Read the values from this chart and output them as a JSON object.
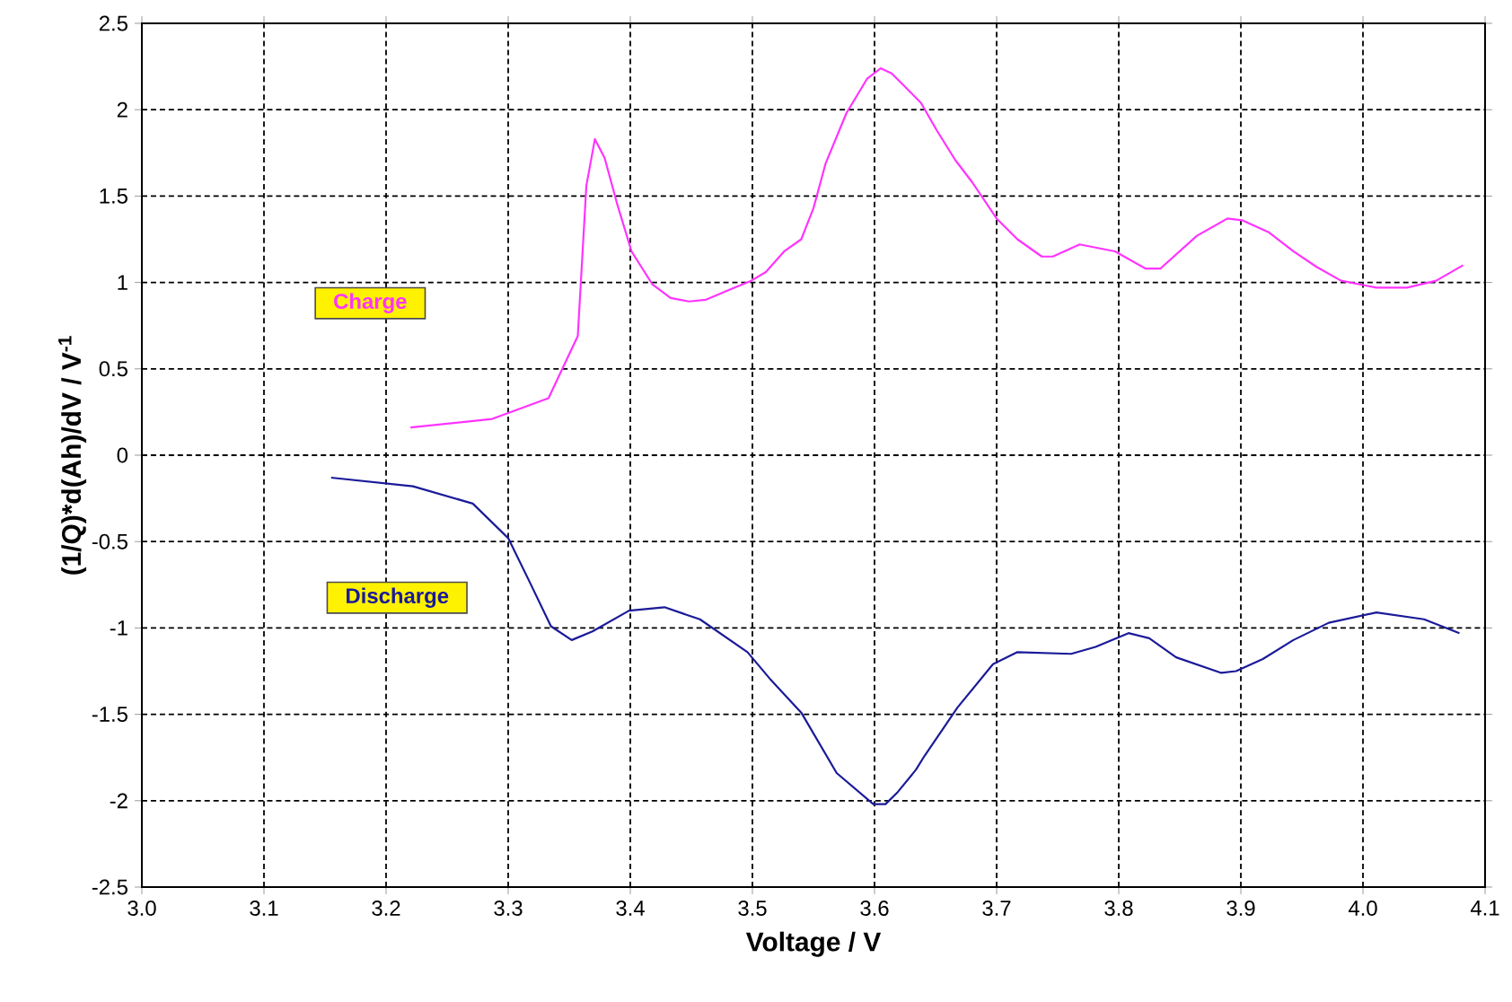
{
  "chart_data": {
    "type": "line",
    "xlabel": "Voltage / V",
    "ylabel": "(1/Q)*d(Ah)/dV  / V$^{-1}$",
    "xlim": [
      3.0,
      4.1
    ],
    "ylim": [
      -2.5,
      2.5
    ],
    "xticks": [
      {
        "value": 3.0,
        "label": "3.0"
      },
      3.1,
      3.2,
      3.3,
      3.4,
      3.5,
      3.6,
      3.7,
      3.8,
      3.9,
      {
        "value": 4.0,
        "label": "4.0"
      },
      4.1
    ],
    "yticks": [
      -2.5,
      -2,
      -1.5,
      -1,
      -0.5,
      0,
      0.5,
      1,
      1.5,
      2,
      2.5
    ],
    "grid": true,
    "legend": false,
    "marker": "none",
    "line_style": "solid",
    "series": [
      {
        "name": "Charge",
        "color": "#ff33ff",
        "x": [
          3.22,
          3.287,
          3.333,
          3.357,
          3.364,
          3.371,
          3.379,
          3.389,
          3.401,
          3.418,
          3.433,
          3.448,
          3.462,
          3.482,
          3.499,
          3.511,
          3.526,
          3.54,
          3.55,
          3.56,
          3.577,
          3.594,
          3.605,
          3.614,
          3.624,
          3.638,
          3.651,
          3.666,
          3.68,
          3.7,
          3.717,
          3.737,
          3.746,
          3.768,
          3.797,
          3.822,
          3.834,
          3.864,
          3.889,
          3.901,
          3.923,
          3.943,
          3.962,
          3.982,
          4.011,
          4.036,
          4.06,
          4.082
        ],
        "values": [
          0.16,
          0.21,
          0.33,
          0.69,
          1.56,
          1.83,
          1.72,
          1.46,
          1.18,
          0.99,
          0.91,
          0.89,
          0.9,
          0.96,
          1.01,
          1.06,
          1.18,
          1.25,
          1.43,
          1.69,
          1.98,
          2.18,
          2.24,
          2.21,
          2.14,
          2.04,
          1.88,
          1.71,
          1.58,
          1.37,
          1.25,
          1.15,
          1.15,
          1.22,
          1.18,
          1.08,
          1.08,
          1.27,
          1.37,
          1.36,
          1.29,
          1.18,
          1.09,
          1.01,
          0.97,
          0.97,
          1.01,
          1.1
        ]
      },
      {
        "name": "Discharge",
        "color": "#1a1a99",
        "x": [
          3.155,
          3.222,
          3.271,
          3.3,
          3.318,
          3.335,
          3.352,
          3.369,
          3.399,
          3.428,
          3.457,
          3.496,
          3.515,
          3.54,
          3.569,
          3.599,
          3.609,
          3.619,
          3.634,
          3.641,
          3.668,
          3.697,
          3.717,
          3.761,
          3.781,
          3.808,
          3.825,
          3.847,
          3.884,
          3.896,
          3.918,
          3.943,
          3.972,
          4.011,
          4.05,
          4.079
        ],
        "values": [
          -0.13,
          -0.18,
          -0.28,
          -0.48,
          -0.74,
          -0.99,
          -1.07,
          -1.02,
          -0.9,
          -0.88,
          -0.95,
          -1.14,
          -1.3,
          -1.49,
          -1.84,
          -2.02,
          -2.02,
          -1.95,
          -1.82,
          -1.74,
          -1.46,
          -1.21,
          -1.14,
          -1.15,
          -1.11,
          -1.03,
          -1.06,
          -1.17,
          -1.26,
          -1.25,
          -1.18,
          -1.07,
          -0.97,
          -0.91,
          -0.95,
          -1.03
        ]
      }
    ]
  }
}
